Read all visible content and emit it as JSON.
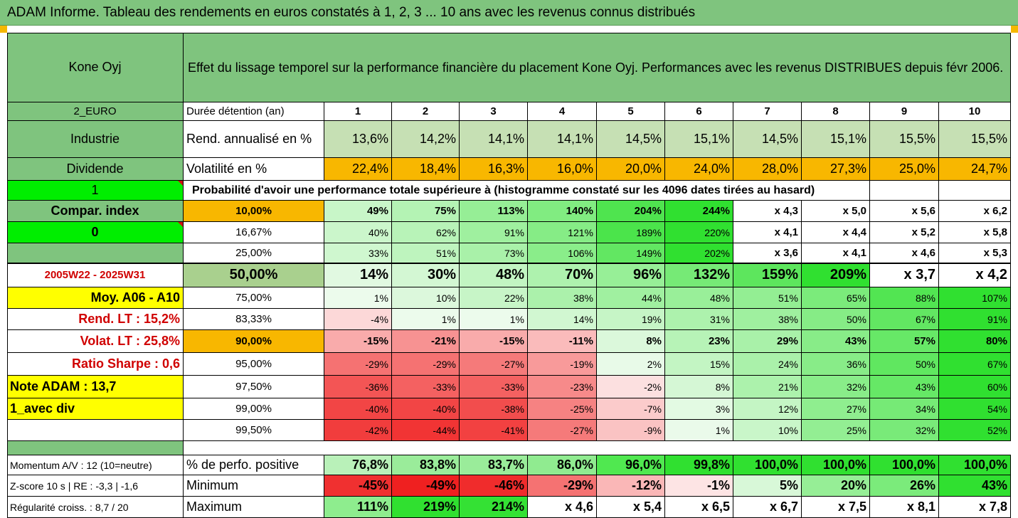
{
  "title": "ADAM Informe. Tableau des rendements en euros constatés à 1, 2, 3 ... 10 ans avec les revenus connus distribués",
  "header": {
    "name": "Kone Oyj",
    "description": "Effet du lissage temporel sur la performance financière du placement Kone Oyj. Performances avec les revenus DISTRIBUES depuis févr 2006."
  },
  "left": {
    "currency": "2_EURO",
    "sector": "Industrie",
    "dividend": "Dividende",
    "one": "1",
    "compar": "Compar. index",
    "zero": "0",
    "period": "2005W22 - 2025W31",
    "moy": "Moy. A06 - A10",
    "rend_lt": "Rend. LT :   15,2%",
    "volat_lt": "Volat. LT :   25,8%",
    "sharpe": "Ratio Sharpe :    0,6",
    "note": "Note ADAM : 13,7",
    "avec_div": "1_avec div"
  },
  "durations": {
    "label": "Durée détention (an)",
    "values": [
      "1",
      "2",
      "3",
      "4",
      "5",
      "6",
      "7",
      "8",
      "9",
      "10"
    ]
  },
  "rend": {
    "label": "Rend. annualisé en %",
    "values": [
      "13,6%",
      "14,2%",
      "14,1%",
      "14,1%",
      "14,5%",
      "15,1%",
      "14,5%",
      "15,1%",
      "15,5%",
      "15,5%"
    ]
  },
  "volat": {
    "label": "Volatilité en %",
    "values": [
      "22,4%",
      "18,4%",
      "16,3%",
      "16,0%",
      "20,0%",
      "24,0%",
      "28,0%",
      "27,3%",
      "25,0%",
      "24,7%"
    ]
  },
  "proba_title": "Probabilité d'avoir une performance totale supérieure à (histogramme constaté sur les 4096 dates tirées au hasard)",
  "prob_rows": [
    {
      "p": "10,00%",
      "values": [
        "49%",
        "75%",
        "113%",
        "140%",
        "204%",
        "244%",
        "x 4,3",
        "x 5,0",
        "x 5,6",
        "x 6,2"
      ]
    },
    {
      "p": "16,67%",
      "values": [
        "40%",
        "62%",
        "91%",
        "121%",
        "189%",
        "220%",
        "x 4,1",
        "x 4,4",
        "x 5,2",
        "x 5,8"
      ]
    },
    {
      "p": "25,00%",
      "values": [
        "33%",
        "51%",
        "73%",
        "106%",
        "149%",
        "202%",
        "x 3,6",
        "x 4,1",
        "x 4,6",
        "x 5,3"
      ]
    },
    {
      "p": "50,00%",
      "values": [
        "14%",
        "30%",
        "48%",
        "70%",
        "96%",
        "132%",
        "159%",
        "209%",
        "x 3,7",
        "x 4,2"
      ]
    },
    {
      "p": "75,00%",
      "values": [
        "1%",
        "10%",
        "22%",
        "38%",
        "44%",
        "48%",
        "51%",
        "65%",
        "88%",
        "107%"
      ]
    },
    {
      "p": "83,33%",
      "values": [
        "-4%",
        "1%",
        "1%",
        "14%",
        "19%",
        "31%",
        "38%",
        "50%",
        "67%",
        "91%"
      ]
    },
    {
      "p": "90,00%",
      "values": [
        "-15%",
        "-21%",
        "-15%",
        "-11%",
        "8%",
        "23%",
        "29%",
        "43%",
        "57%",
        "80%"
      ]
    },
    {
      "p": "95,00%",
      "values": [
        "-29%",
        "-29%",
        "-27%",
        "-19%",
        "2%",
        "15%",
        "24%",
        "36%",
        "50%",
        "67%"
      ]
    },
    {
      "p": "97,50%",
      "values": [
        "-36%",
        "-33%",
        "-33%",
        "-23%",
        "-2%",
        "8%",
        "21%",
        "32%",
        "43%",
        "60%"
      ]
    },
    {
      "p": "99,00%",
      "values": [
        "-40%",
        "-40%",
        "-38%",
        "-25%",
        "-7%",
        "3%",
        "12%",
        "27%",
        "34%",
        "54%"
      ]
    },
    {
      "p": "99,50%",
      "values": [
        "-42%",
        "-44%",
        "-41%",
        "-27%",
        "-9%",
        "1%",
        "10%",
        "25%",
        "32%",
        "52%"
      ]
    }
  ],
  "bottom": [
    {
      "left": "Momentum A/V : 12 (10=neutre)",
      "label": "% de perfo. positive",
      "values": [
        "76,8%",
        "83,8%",
        "83,7%",
        "86,0%",
        "96,0%",
        "99,8%",
        "100,0%",
        "100,0%",
        "100,0%",
        "100,0%"
      ]
    },
    {
      "left": "Z-score 10 s  |  RE : -3,3  |  -1,6",
      "label": "Minimum",
      "values": [
        "-45%",
        "-49%",
        "-46%",
        "-29%",
        "-12%",
        "-1%",
        "5%",
        "20%",
        "26%",
        "43%"
      ]
    },
    {
      "left": "Régularité croiss. : 8,7 / 20",
      "label": "Maximum",
      "values": [
        "111%",
        "219%",
        "214%",
        "x 4,6",
        "x 5,4",
        "x 6,5",
        "x 6,7",
        "x 7,5",
        "x 8,1",
        "x 7,8"
      ]
    }
  ],
  "colors": {
    "title_bg": "#7fc47e",
    "header_green": "#7fc47e",
    "light_green": "#c6e0b4",
    "orange": "#f8b700",
    "bright_green": "#00ee00",
    "yellow": "#ffff00",
    "red_text": "#d00000"
  }
}
